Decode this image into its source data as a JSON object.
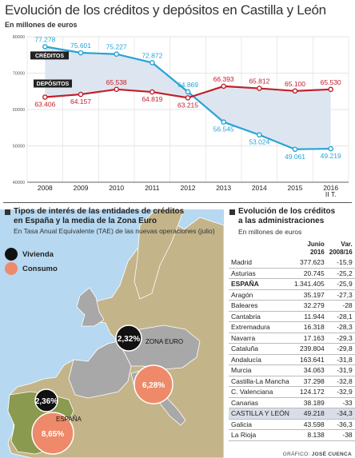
{
  "title": "Evolución de los créditos y depósitos en Castilla y León",
  "subtitle": "En millones de euros",
  "chart_data": [
    {
      "type": "line",
      "title": "Evolución de los créditos y depósitos en Castilla y León",
      "ylabel": "En millones de euros",
      "x": [
        "2008",
        "2009",
        "2010",
        "2011",
        "2012",
        "2013",
        "2014",
        "2015",
        "2016\nII T."
      ],
      "ylim": [
        40000,
        80000
      ],
      "yticks": [
        "80000",
        "70000",
        "60000",
        "50000",
        "40000"
      ],
      "grid": true,
      "series": [
        {
          "name": "CRÉDITOS",
          "color": "#29a3d6",
          "values": [
            77278,
            75601,
            75227,
            72872,
            64869,
            56545,
            53024,
            49061,
            49219
          ],
          "labels": [
            "77.278",
            "75.601",
            "75.227",
            "72.872",
            "64.869",
            "56.545",
            "53.024",
            "49.061",
            "49.219"
          ]
        },
        {
          "name": "DEPÓSITOS",
          "color": "#c0202b",
          "values": [
            63406,
            64157,
            65538,
            64819,
            63215,
            66393,
            65812,
            65100,
            65530
          ],
          "labels": [
            "63.406",
            "64.157",
            "65.538",
            "64.819",
            "63.215",
            "66.393",
            "65.812",
            "65.100",
            "65.530"
          ]
        }
      ]
    },
    {
      "type": "bubble-map",
      "title": "Tipos de interés de las entidades de créditos en España y la media de la Zona Euro",
      "series": [
        {
          "name": "Vivienda",
          "color": "#111111",
          "values": [
            {
              "region": "ESPAÑA",
              "value": "2,36%"
            },
            {
              "region": "ZONA EURO",
              "value": "2,32%"
            }
          ]
        },
        {
          "name": "Consumo",
          "color": "#ee8a6a",
          "values": [
            {
              "region": "ESPAÑA",
              "value": "8,65%"
            },
            {
              "region": "ZONA EURO",
              "value": "6,28%"
            }
          ]
        }
      ]
    }
  ],
  "rates": {
    "title_line1": "Tipos de interés de las entidades de créditos",
    "title_line2": "en España y la media de la Zona Euro",
    "sub": "En Tasa Anual Equivalente (TAE) de las nuevas operaciones (julio)",
    "legend_vivienda": "Vivienda",
    "legend_consumo": "Consumo",
    "label_espana": "ESPAÑA",
    "label_zona": "ZONA EURO",
    "es_vivienda": "2,36%",
    "es_consumo": "8,65%",
    "ze_vivienda": "2,32%",
    "ze_consumo": "6,28%"
  },
  "admin": {
    "title_line1": "Evolución de los créditos",
    "title_line2": "a las administraciones",
    "sub": "En millones de euros",
    "col1_l1": "Junio",
    "col1_l2": "2016",
    "col2_l1": "Var.",
    "col2_l2": "2008/16",
    "rows": [
      {
        "region": "Madrid",
        "value": "377.623",
        "var": "-15,9"
      },
      {
        "region": "Asturias",
        "value": "20.745",
        "var": "-25,2"
      },
      {
        "region": "ESPAÑA",
        "value": "1.341.405",
        "var": "-25,9"
      },
      {
        "region": "Aragón",
        "value": "35.197",
        "var": "-27,3"
      },
      {
        "region": "Baleares",
        "value": "32.279",
        "var": "-28"
      },
      {
        "region": "Cantabria",
        "value": "11.944",
        "var": "-28,1"
      },
      {
        "region": "Extremadura",
        "value": "16.318",
        "var": "-28,3"
      },
      {
        "region": "Navarra",
        "value": "17.163",
        "var": "-29,3"
      },
      {
        "region": "Cataluña",
        "value": "239.804",
        "var": "-29,8"
      },
      {
        "region": "Andalucía",
        "value": "163.641",
        "var": "-31,8"
      },
      {
        "region": "Murcia",
        "value": "34.063",
        "var": "-31,9"
      },
      {
        "region": "Castilla-La Mancha",
        "value": "37.298",
        "var": "-32,8"
      },
      {
        "region": "C. Valenciana",
        "value": "124.172",
        "var": "-32,9"
      },
      {
        "region": "Canarias",
        "value": "38.189",
        "var": "-33"
      },
      {
        "region": "CASTILLA Y LEÓN",
        "value": "49.218",
        "var": "-34,3"
      },
      {
        "region": "Galicia",
        "value": "43.598",
        "var": "-36,3"
      },
      {
        "region": "La Rioja",
        "value": "8.138",
        "var": "-38"
      }
    ]
  },
  "credit": {
    "prefix": "GRÁFICO: ",
    "author": "JOSÉ CUENCA"
  }
}
